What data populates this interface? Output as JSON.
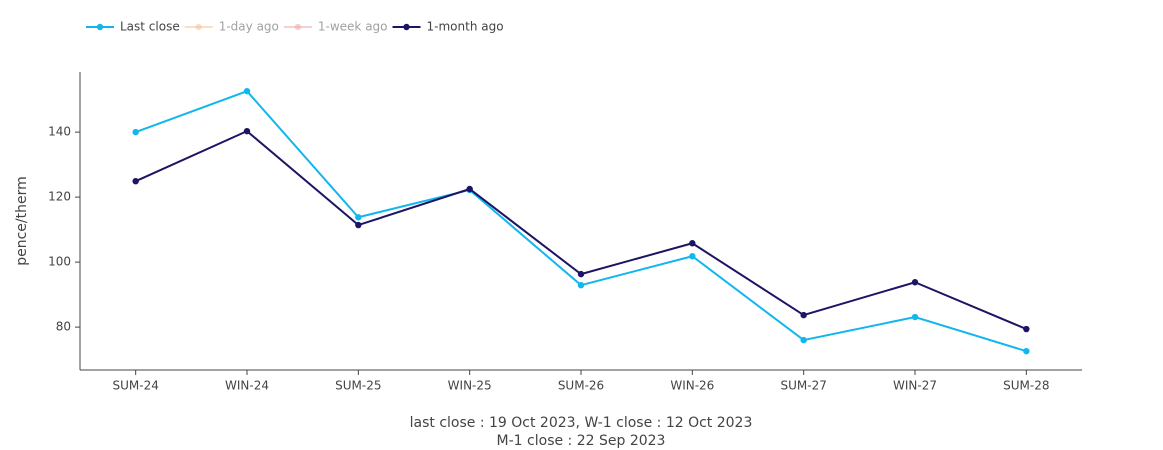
{
  "chart_data": {
    "type": "line",
    "y_label": "pence/therm",
    "categories": [
      "SUM-24",
      "WIN-24",
      "SUM-25",
      "WIN-25",
      "SUM-26",
      "WIN-26",
      "SUM-27",
      "WIN-27",
      "SUM-28"
    ],
    "series": [
      {
        "name": "Last close",
        "color": "#12b6ee",
        "visible": true,
        "values": [
          140,
          152.6,
          113.8,
          122.2,
          92.9,
          101.8,
          76,
          83.1,
          72.6
        ]
      },
      {
        "name": "1-day ago",
        "color": "#f6c08f",
        "visible": false,
        "values": [
          null,
          null,
          null,
          null,
          null,
          null,
          null,
          null,
          null
        ]
      },
      {
        "name": "1-week ago",
        "color": "#f1a1a1",
        "visible": false,
        "values": [
          null,
          null,
          null,
          null,
          null,
          null,
          null,
          null,
          null
        ]
      },
      {
        "name": "1-month ago",
        "color": "#1c1464",
        "visible": true,
        "values": [
          124.9,
          140.3,
          111.4,
          122.5,
          96.3,
          105.8,
          83.7,
          93.8,
          79.4
        ]
      }
    ],
    "ylim": [
      66.8,
      158.5
    ],
    "yticks": [
      80,
      100,
      120,
      140
    ],
    "grid": false,
    "legend": "top-left",
    "annotation": [
      "last close : 19 Oct 2023, W-1 close : 12 Oct 2023",
      "M-1 close : 22 Sep 2023"
    ]
  }
}
